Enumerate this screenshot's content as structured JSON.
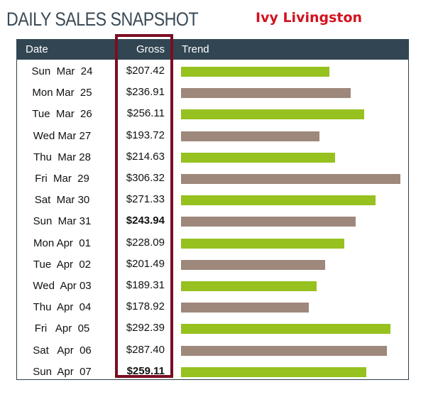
{
  "title": "DAILY SALES SNAPSHOT",
  "author": "Ivy Livingston",
  "colors": {
    "header_bg": "#324553",
    "author_red": "#d3121f",
    "highlight_border": "#7a0e22",
    "bar_green": "#96c11f",
    "bar_taupe": "#9e887c"
  },
  "chart_data": {
    "type": "bar",
    "orientation": "horizontal",
    "columns": [
      "Date",
      "Gross",
      "Trend"
    ],
    "xlim": [
      0,
      306.32
    ],
    "rows": [
      {
        "date": "Sun  Mar  24",
        "gross_label": "$207.42",
        "value": 207.42,
        "bold": false
      },
      {
        "date": "Mon Mar  25",
        "gross_label": "$236.91",
        "value": 236.91,
        "bold": false
      },
      {
        "date": "Tue  Mar  26",
        "gross_label": "$256.11",
        "value": 256.11,
        "bold": false
      },
      {
        "date": "Wed Mar 27",
        "gross_label": "$193.72",
        "value": 193.72,
        "bold": false
      },
      {
        "date": "Thu  Mar 28",
        "gross_label": "$214.63",
        "value": 214.63,
        "bold": false
      },
      {
        "date": "Fri  Mar  29",
        "gross_label": "$306.32",
        "value": 306.32,
        "bold": false
      },
      {
        "date": "Sat  Mar 30",
        "gross_label": "$271.33",
        "value": 271.33,
        "bold": false
      },
      {
        "date": "Sun  Mar 31",
        "gross_label": "$243.94",
        "value": 243.94,
        "bold": true
      },
      {
        "date": "Mon Apr  01",
        "gross_label": "$228.09",
        "value": 228.09,
        "bold": false
      },
      {
        "date": "Tue  Apr  02",
        "gross_label": "$201.49",
        "value": 201.49,
        "bold": false
      },
      {
        "date": "Wed  Apr 03",
        "gross_label": "$189.31",
        "value": 189.31,
        "bold": false
      },
      {
        "date": "Thu  Apr  04",
        "gross_label": "$178.92",
        "value": 178.92,
        "bold": false
      },
      {
        "date": "Fri   Apr  05",
        "gross_label": "$292.39",
        "value": 292.39,
        "bold": false
      },
      {
        "date": "Sat   Apr  06",
        "gross_label": "$287.40",
        "value": 287.4,
        "bold": false
      },
      {
        "date": "Sun  Apr  07",
        "gross_label": "$259.11",
        "value": 259.11,
        "bold": true
      }
    ]
  }
}
